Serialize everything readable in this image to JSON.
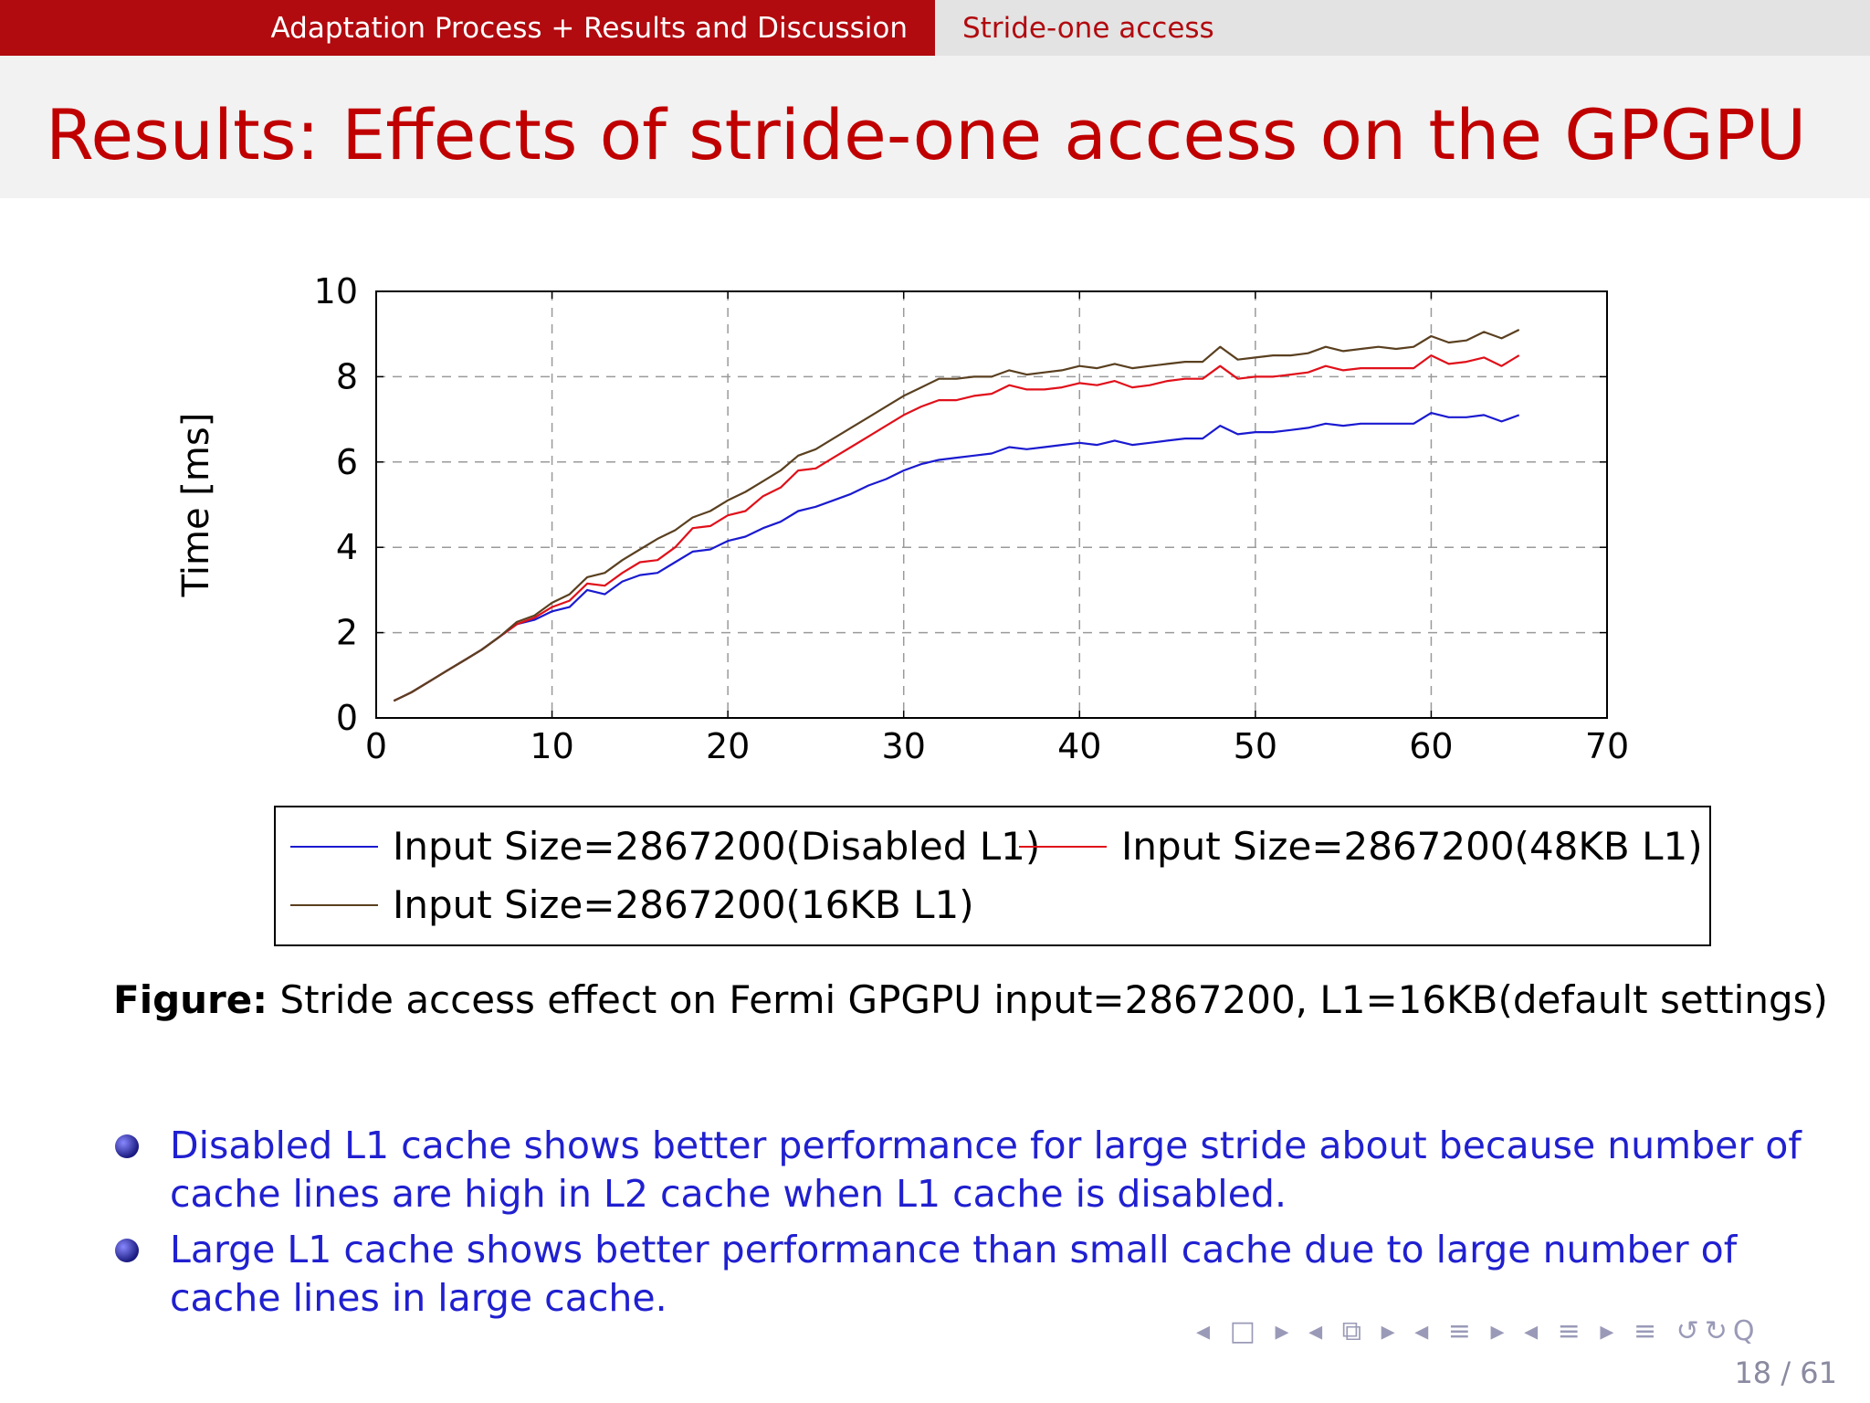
{
  "navbar": {
    "section": "Adaptation Process + Results and Discussion",
    "subsection": "Stride-one access"
  },
  "slide": {
    "title": "Results: Effects of stride-one access on the GPGPU",
    "caption_label": "Figure:",
    "caption_text": "Stride access effect on Fermi GPGPU input=2867200, L1=16KB(default settings)",
    "bullets": [
      "Disabled L1 cache shows better performance for large stride about because number of cache lines are high in L2 cache when L1 cache is disabled.",
      "Large L1 cache shows better performance than small cache due to large number of cache lines in large cache."
    ],
    "nav_symbols": "◂ □ ▸ ◂ ⧉ ▸ ◂ ≡ ▸ ◂ ≡ ▸   ≡   ↺↻Q",
    "page_number": "18 / 61"
  },
  "colors": {
    "nav_red": "#b10a0f",
    "title_red": "#c00000",
    "bullet_blue": "#2020d0",
    "series_disabled": "#1a1ad0",
    "series_48kb": "#e0101a",
    "series_16kb": "#5a4020"
  },
  "chart_data": {
    "type": "line",
    "title": "",
    "xlabel": "",
    "ylabel": "Time [ms]",
    "xlim": [
      0,
      70
    ],
    "ylim": [
      0,
      10
    ],
    "x_ticks": [
      "0",
      "10",
      "20",
      "30",
      "40",
      "50",
      "60",
      "70"
    ],
    "y_ticks": [
      "0",
      "2",
      "4",
      "6",
      "8",
      "10"
    ],
    "grid": true,
    "legend_position": "bottom",
    "x": [
      1,
      2,
      3,
      4,
      5,
      6,
      7,
      8,
      9,
      10,
      11,
      12,
      13,
      14,
      15,
      16,
      17,
      18,
      19,
      20,
      21,
      22,
      23,
      24,
      25,
      26,
      27,
      28,
      29,
      30,
      31,
      32,
      33,
      34,
      35,
      36,
      37,
      38,
      39,
      40,
      41,
      42,
      43,
      44,
      45,
      46,
      47,
      48,
      49,
      50,
      51,
      52,
      53,
      54,
      55,
      56,
      57,
      58,
      59,
      60,
      61,
      62,
      63,
      64,
      65
    ],
    "series": [
      {
        "name": "Input Size=2867200(Disabled L1)",
        "color": "#1a1ad0",
        "values": [
          0.4,
          0.6,
          0.85,
          1.1,
          1.35,
          1.6,
          1.9,
          2.2,
          2.3,
          2.5,
          2.6,
          3.0,
          2.9,
          3.2,
          3.35,
          3.4,
          3.65,
          3.9,
          3.95,
          4.15,
          4.25,
          4.45,
          4.6,
          4.85,
          4.95,
          5.1,
          5.25,
          5.45,
          5.6,
          5.8,
          5.95,
          6.05,
          6.1,
          6.15,
          6.2,
          6.35,
          6.3,
          6.35,
          6.4,
          6.45,
          6.4,
          6.5,
          6.4,
          6.45,
          6.5,
          6.55,
          6.55,
          6.85,
          6.65,
          6.7,
          6.7,
          6.75,
          6.8,
          6.9,
          6.85,
          6.9,
          6.9,
          6.9,
          6.9,
          7.15,
          7.05,
          7.05,
          7.1,
          6.95,
          7.1
        ]
      },
      {
        "name": "Input Size=2867200(48KB L1)",
        "color": "#e0101a",
        "values": [
          0.4,
          0.6,
          0.85,
          1.1,
          1.35,
          1.6,
          1.9,
          2.2,
          2.35,
          2.6,
          2.75,
          3.15,
          3.1,
          3.4,
          3.65,
          3.7,
          4.0,
          4.45,
          4.5,
          4.75,
          4.85,
          5.2,
          5.4,
          5.8,
          5.85,
          6.1,
          6.35,
          6.6,
          6.85,
          7.1,
          7.3,
          7.45,
          7.45,
          7.55,
          7.6,
          7.8,
          7.7,
          7.7,
          7.75,
          7.85,
          7.8,
          7.9,
          7.75,
          7.8,
          7.9,
          7.95,
          7.95,
          8.25,
          7.95,
          8.0,
          8.0,
          8.05,
          8.1,
          8.25,
          8.15,
          8.2,
          8.2,
          8.2,
          8.2,
          8.5,
          8.3,
          8.35,
          8.45,
          8.25,
          8.5
        ]
      },
      {
        "name": "Input Size=2867200(16KB L1)",
        "color": "#5a4020",
        "values": [
          0.4,
          0.6,
          0.85,
          1.1,
          1.35,
          1.6,
          1.9,
          2.25,
          2.4,
          2.7,
          2.9,
          3.3,
          3.4,
          3.7,
          3.95,
          4.2,
          4.4,
          4.7,
          4.85,
          5.1,
          5.3,
          5.55,
          5.8,
          6.15,
          6.3,
          6.55,
          6.8,
          7.05,
          7.3,
          7.55,
          7.75,
          7.95,
          7.95,
          8.0,
          8.0,
          8.15,
          8.05,
          8.1,
          8.15,
          8.25,
          8.2,
          8.3,
          8.2,
          8.25,
          8.3,
          8.35,
          8.35,
          8.7,
          8.4,
          8.45,
          8.5,
          8.5,
          8.55,
          8.7,
          8.6,
          8.65,
          8.7,
          8.65,
          8.7,
          8.95,
          8.8,
          8.85,
          9.05,
          8.9,
          9.1
        ]
      }
    ]
  }
}
